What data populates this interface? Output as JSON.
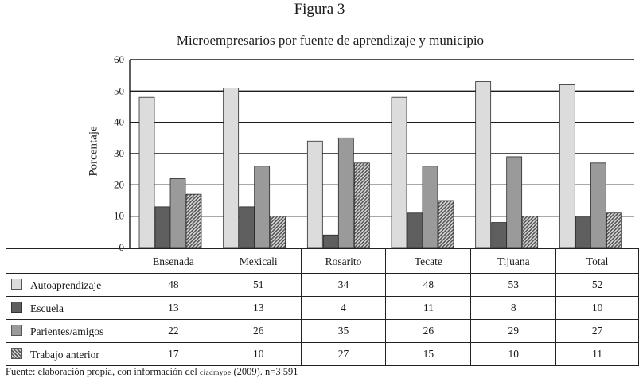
{
  "figure_label": "Figura 3",
  "chart_data": {
    "type": "bar",
    "title": "Microempresarios por fuente de aprendizaje y municipio",
    "xlabel": "",
    "ylabel": "Porcentaje",
    "ylim": [
      0,
      60
    ],
    "yticks": [
      0,
      10,
      20,
      30,
      40,
      50,
      60
    ],
    "grid": true,
    "categories": [
      "Ensenada",
      "Mexicali",
      "Rosarito",
      "Tecate",
      "Tijuana",
      "Total"
    ],
    "series": [
      {
        "name": "Autoaprendizaje",
        "values": [
          48,
          51,
          34,
          48,
          53,
          52
        ],
        "color": "#dcdcdc",
        "pattern": "solid"
      },
      {
        "name": "Escuela",
        "values": [
          13,
          13,
          4,
          11,
          8,
          10
        ],
        "color": "#5f5f5f",
        "pattern": "solid"
      },
      {
        "name": "Parientes/amigos",
        "values": [
          22,
          26,
          35,
          26,
          29,
          27
        ],
        "color": "#9a9a9a",
        "pattern": "solid"
      },
      {
        "name": "Trabajo anterior",
        "values": [
          17,
          10,
          27,
          15,
          10,
          11
        ],
        "color": "#8a8a8a",
        "pattern": "hatch"
      }
    ]
  },
  "source_note": {
    "prefix": "Fuente: elaboración propia, con información del ",
    "org": "ciadmype",
    "suffix": " (2009). n=3 591"
  }
}
